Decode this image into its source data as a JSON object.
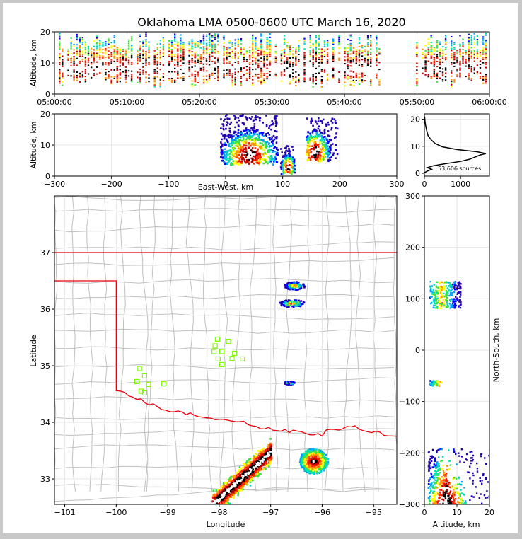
{
  "chart_data": [
    {
      "panel": "time-altitude",
      "type": "heatmap",
      "title": "Oklahoma LMA 0500-0600 UTC March 16, 2020",
      "ylabel": "Altitude, km",
      "ylim": [
        0,
        20
      ],
      "yticks": [
        "0",
        "10",
        "20"
      ],
      "xlim": [
        "05:00:00",
        "06:00:00"
      ],
      "xticks": [
        "05:00:00",
        "05:10:00",
        "05:20:00",
        "05:30:00",
        "05:40:00",
        "05:50:00",
        "06:00:00"
      ],
      "note": "columns of VHF sources colored by density, altitudes mostly 3-15 km, gap near 05:48"
    },
    {
      "panel": "east-west-altitude",
      "type": "heatmap",
      "xlabel": "East-West, km",
      "ylabel": "Altitude, km",
      "xlim": [
        -300,
        300
      ],
      "ylim": [
        0,
        20
      ],
      "xticks": [
        "−300",
        "−200",
        "−100",
        "0",
        "100",
        "200",
        "300"
      ],
      "yticks": [
        "0",
        "10",
        "20"
      ],
      "clusters": [
        {
          "x": [
            -10,
            90
          ],
          "alt": [
            4,
            20
          ],
          "peak_x": 40,
          "peak_alt": 7
        },
        {
          "x": [
            95,
            120
          ],
          "alt": [
            1,
            10
          ],
          "peak_x": 108,
          "peak_alt": 3
        },
        {
          "x": [
            140,
            195
          ],
          "alt": [
            5,
            19
          ],
          "peak_x": 155,
          "peak_alt": 8
        }
      ]
    },
    {
      "panel": "altitude-histogram",
      "type": "line",
      "xlim": [
        0,
        1800
      ],
      "ylim": [
        0,
        22
      ],
      "xticks": [
        "0",
        "1000"
      ],
      "yticks": [
        "0",
        "10",
        "20"
      ],
      "annotation": "53,606 sources",
      "profile": [
        [
          0,
          0.2
        ],
        [
          80,
          0.8
        ],
        [
          200,
          1.5
        ],
        [
          80,
          2.1
        ],
        [
          250,
          2.8
        ],
        [
          600,
          3.6
        ],
        [
          1000,
          4.4
        ],
        [
          1250,
          5.2
        ],
        [
          1400,
          6.0
        ],
        [
          1550,
          6.8
        ],
        [
          1700,
          7.3
        ],
        [
          1450,
          8.0
        ],
        [
          900,
          8.8
        ],
        [
          500,
          9.8
        ],
        [
          300,
          11
        ],
        [
          180,
          12.5
        ],
        [
          100,
          14
        ],
        [
          60,
          16
        ],
        [
          30,
          18
        ],
        [
          15,
          19.5
        ],
        [
          5,
          21
        ]
      ]
    },
    {
      "panel": "plan-view",
      "type": "heatmap",
      "xlabel": "Longitude",
      "ylabel": "Latitude",
      "xlim": [
        -101.2,
        -94.55
      ],
      "ylim": [
        32.55,
        38
      ],
      "xticks": [
        "−101",
        "−100",
        "−99",
        "−98",
        "−97",
        "−96",
        "−95"
      ],
      "yticks": [
        "33",
        "34",
        "35",
        "36",
        "37"
      ],
      "stations": [
        [
          -99.55,
          34.95
        ],
        [
          -99.45,
          34.82
        ],
        [
          -99.6,
          34.72
        ],
        [
          -99.37,
          34.67
        ],
        [
          -99.52,
          34.55
        ],
        [
          -99.45,
          34.52
        ],
        [
          -99.08,
          34.68
        ],
        [
          -98.03,
          35.47
        ],
        [
          -98.08,
          35.35
        ],
        [
          -97.82,
          35.43
        ],
        [
          -98.1,
          35.25
        ],
        [
          -97.95,
          35.25
        ],
        [
          -97.7,
          35.22
        ],
        [
          -97.75,
          35.13
        ],
        [
          -98.02,
          35.12
        ],
        [
          -97.55,
          35.12
        ],
        [
          -97.95,
          35.02
        ]
      ],
      "clusters": [
        {
          "lon": [
            -98.15,
            -97.0
          ],
          "lat": [
            32.55,
            33.55
          ]
        },
        {
          "lon": [
            -96.45,
            -95.9
          ],
          "lat": [
            33.1,
            33.55
          ]
        },
        {
          "lon": [
            -96.75,
            -96.35
          ],
          "lat": [
            36.35,
            36.5
          ]
        },
        {
          "lon": [
            -96.85,
            -96.35
          ],
          "lat": [
            36.05,
            36.18
          ]
        },
        {
          "lon": [
            -96.75,
            -96.55
          ],
          "lat": [
            34.68,
            34.74
          ]
        }
      ]
    },
    {
      "panel": "altitude-north-south",
      "type": "heatmap",
      "xlabel": "Altitude, km",
      "ylabel": "North-South, km",
      "xlim": [
        0,
        20
      ],
      "ylim": [
        -300,
        300
      ],
      "xticks": [
        "0",
        "10",
        "20"
      ],
      "yticks": [
        "−300",
        "−200",
        "−100",
        "0",
        "100",
        "200",
        "300"
      ],
      "clusters": [
        {
          "alt": [
            1,
            20
          ],
          "ns": [
            -300,
            -190
          ]
        },
        {
          "alt": [
            1.5,
            11
          ],
          "ns": [
            83,
            135
          ]
        },
        {
          "alt": [
            1.5,
            5
          ],
          "ns": [
            -68,
            -58
          ]
        }
      ]
    }
  ],
  "colors": {
    "state_border": "#e8000b",
    "county_line": "#c0c0c0",
    "station": "#7cfc00",
    "ramp": [
      "#2200aa",
      "#0000ff",
      "#00a0ff",
      "#00e0b0",
      "#40e040",
      "#ffff00",
      "#ff9000",
      "#ff2000",
      "#c00000",
      "#000000",
      "#ffffff"
    ]
  }
}
